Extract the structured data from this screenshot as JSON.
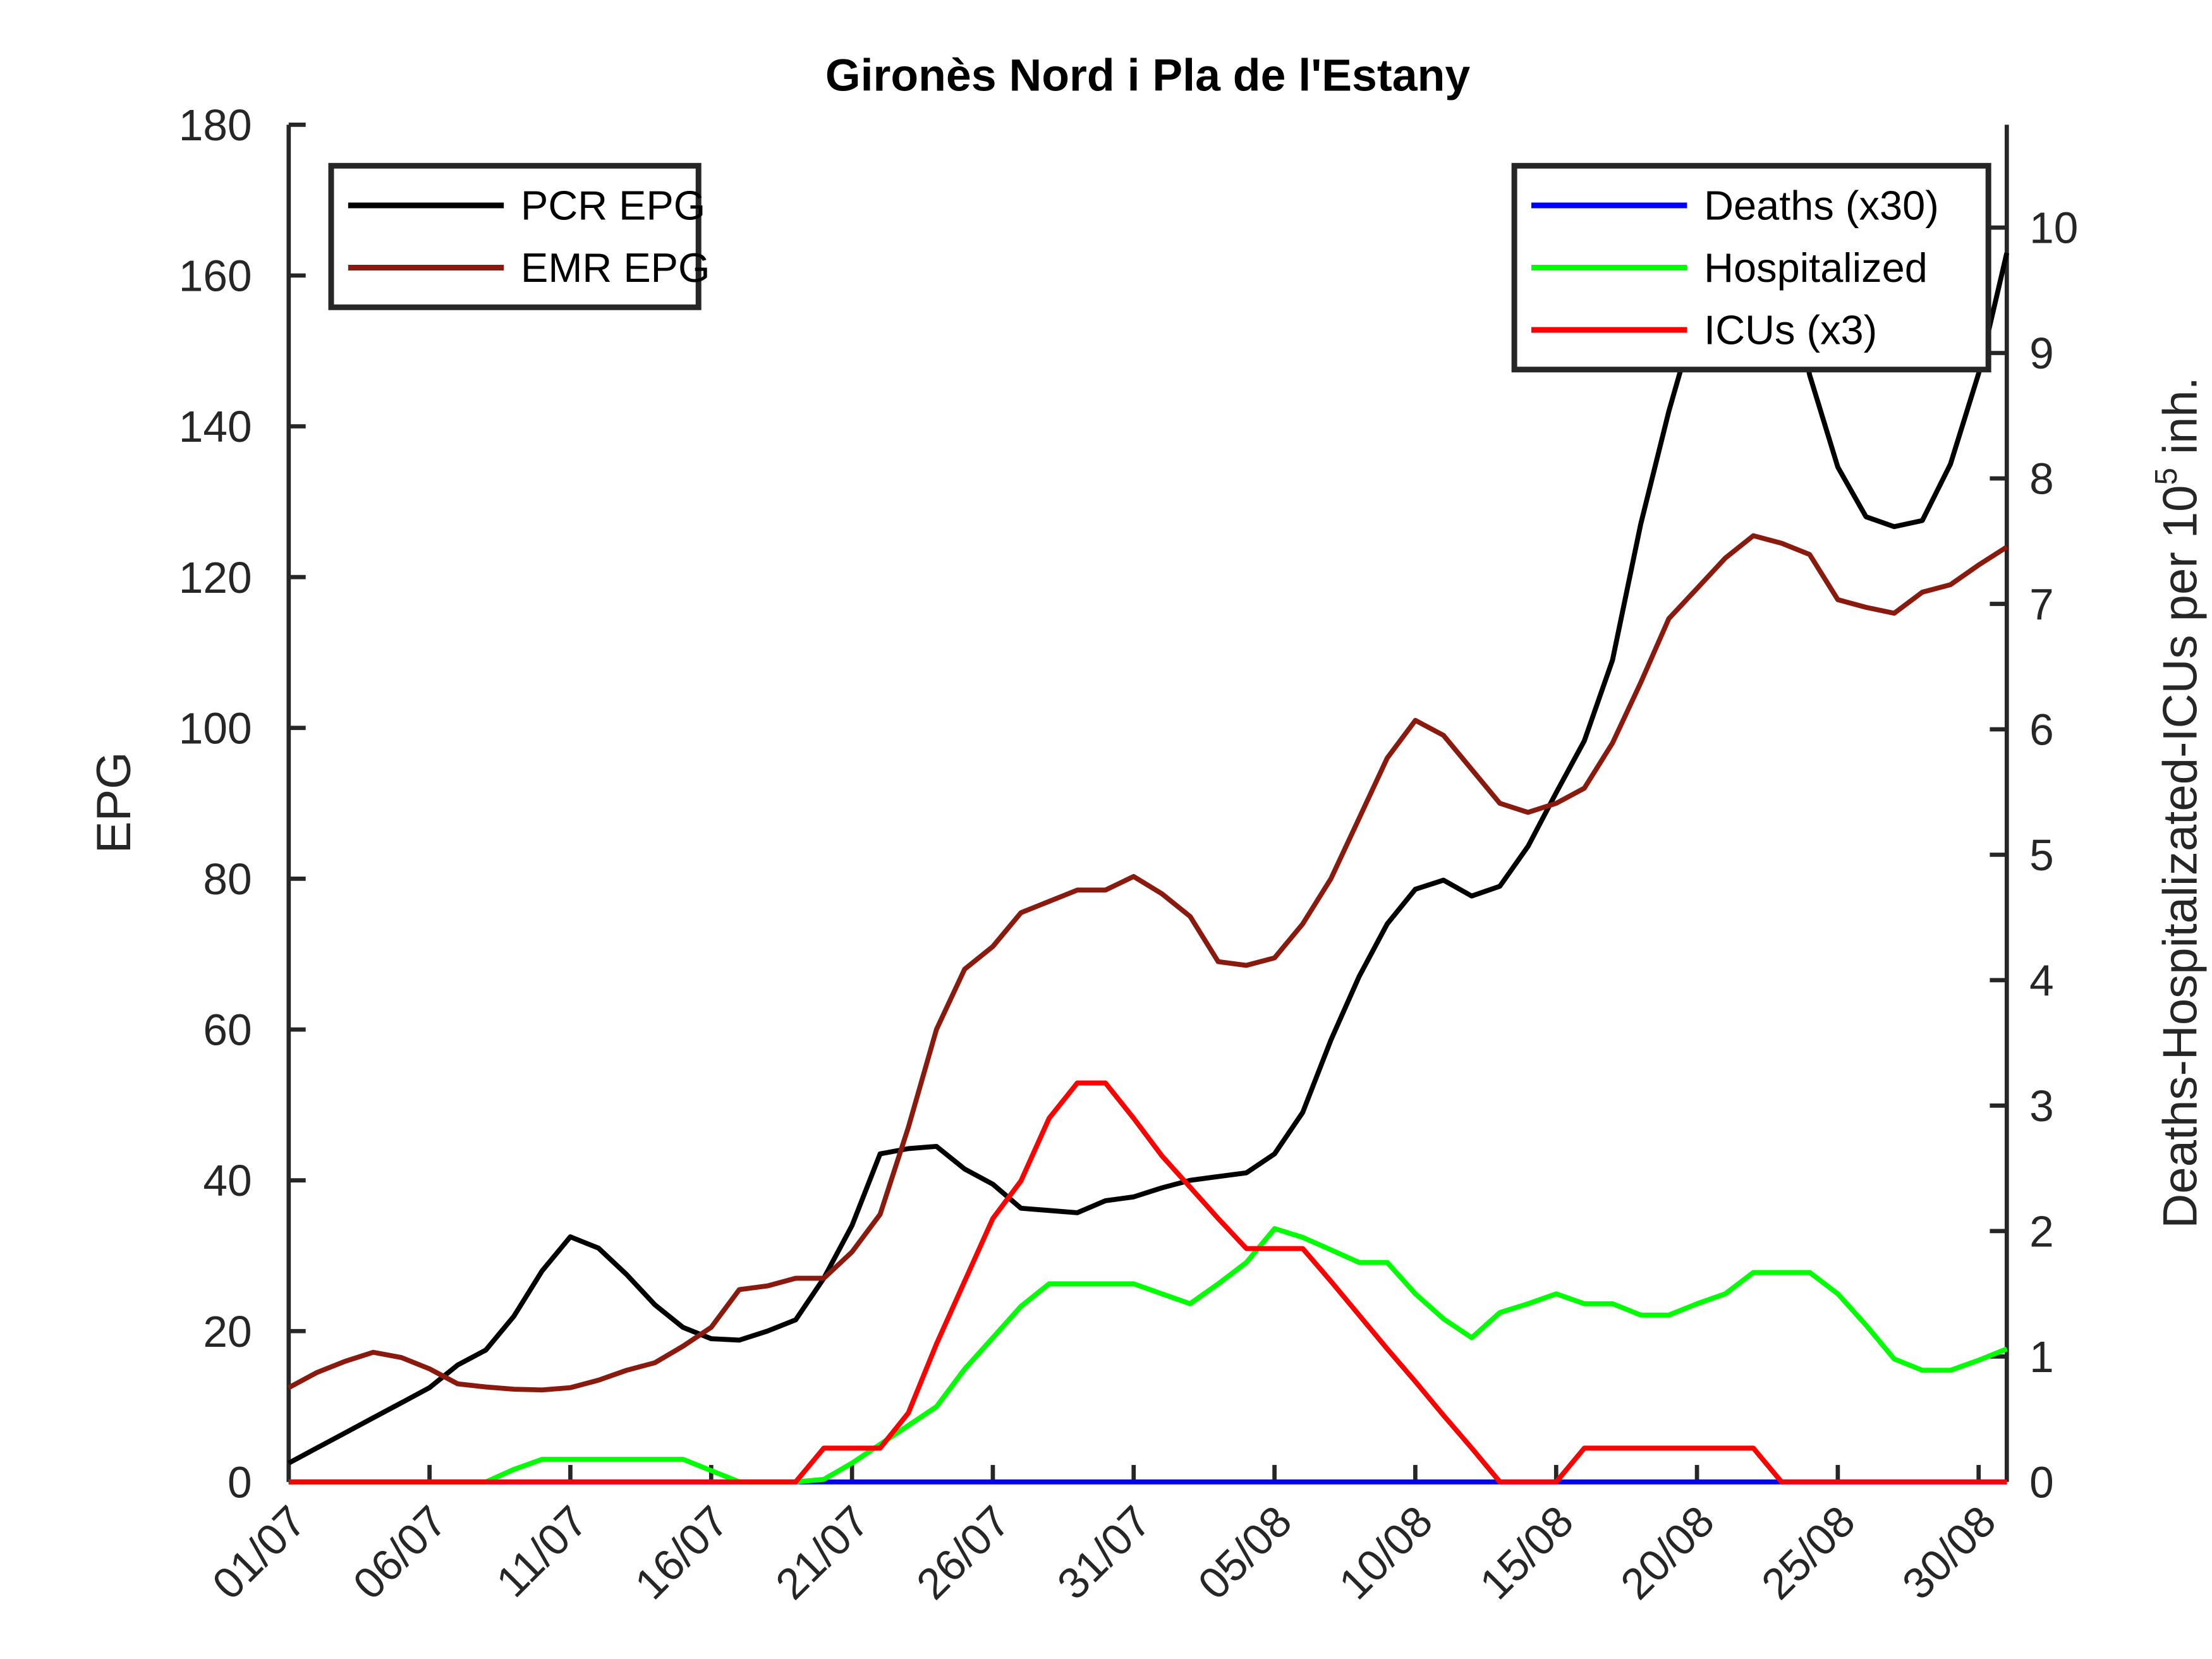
{
  "chart_data": {
    "type": "line",
    "title": "Gironès Nord i Pla de l'Estany",
    "ylabel": "EPG",
    "y2label": [
      "Deaths-Hospitalizated-ICUs per 10",
      "5",
      " inh."
    ],
    "categories": [
      "01/07",
      null,
      null,
      null,
      null,
      "06/07",
      null,
      null,
      null,
      null,
      "11/07",
      null,
      null,
      null,
      null,
      "16/07",
      null,
      null,
      null,
      null,
      "21/07",
      null,
      null,
      null,
      null,
      "26/07",
      null,
      null,
      null,
      null,
      "31/07",
      null,
      null,
      null,
      null,
      "05/08",
      null,
      null,
      null,
      null,
      "10/08",
      null,
      null,
      null,
      null,
      "15/08",
      null,
      null,
      null,
      null,
      "20/08",
      null,
      null,
      null,
      null,
      "25/08",
      null,
      null,
      null,
      null,
      "30/08",
      null
    ],
    "ylim": [
      0,
      180
    ],
    "yticks": [
      0,
      20,
      40,
      60,
      80,
      100,
      120,
      140,
      160,
      180
    ],
    "y2lim": [
      0,
      10.82
    ],
    "y2ticks": [
      0,
      1,
      2,
      3,
      4,
      5,
      6,
      7,
      8,
      9,
      10
    ],
    "legend": {
      "y": "upper left",
      "y2": "upper right"
    },
    "series": [
      {
        "name": "PCR EPG",
        "color": "#000000",
        "axis": "y",
        "values": [
          2.5,
          4.5,
          6.5,
          8.5,
          10.5,
          12.5,
          15.5,
          17.5,
          22,
          28,
          32.5,
          31,
          27.5,
          23.5,
          20.5,
          19,
          18.8,
          20,
          21.5,
          27,
          34,
          43.5,
          44.2,
          44.5,
          41.5,
          39.5,
          36.3,
          36,
          35.7,
          37.3,
          37.8,
          39,
          40,
          40.5,
          41,
          43.5,
          49,
          58.6,
          67,
          74,
          78.6,
          79.8,
          77.7,
          79,
          84.3,
          91.4,
          98.3,
          109,
          127,
          142,
          155,
          165,
          170,
          165,
          146.8,
          134.6,
          128,
          126.7,
          127.5,
          135,
          147,
          163
        ]
      },
      {
        "name": "EMR EPG",
        "color": "#8b1a0e",
        "axis": "y",
        "values": [
          12.5,
          14.5,
          16,
          17.2,
          16.5,
          15,
          13,
          12.6,
          12.3,
          12.2,
          12.5,
          13.5,
          14.8,
          15.8,
          18,
          20.5,
          25.5,
          26,
          27,
          27,
          30.5,
          35.5,
          47,
          60,
          68,
          71,
          75.5,
          77,
          78.5,
          78.5,
          80.3,
          78,
          75,
          69,
          68.5,
          69.5,
          74,
          80,
          88,
          96,
          101,
          99,
          94.5,
          90,
          88.8,
          90,
          92,
          98,
          106,
          114.5,
          118.5,
          122.5,
          125.5,
          124.5,
          123,
          117,
          116,
          115.2,
          118,
          119,
          121.6,
          124
        ]
      },
      {
        "name": "Deaths (x30)",
        "color": "#0000ff",
        "axis": "y2",
        "values": [
          0,
          0,
          0,
          0,
          0,
          0,
          0,
          0,
          0,
          0,
          0,
          0,
          0,
          0,
          0,
          0,
          0,
          0,
          0,
          0,
          0,
          0,
          0,
          0,
          0,
          0,
          0,
          0,
          0,
          0,
          0,
          0,
          0,
          0,
          0,
          0,
          0,
          0,
          0,
          0,
          0,
          0,
          0,
          0,
          0,
          0,
          0,
          0,
          0,
          0,
          0,
          0,
          0,
          0,
          0,
          0,
          0,
          0,
          0,
          0,
          0,
          0
        ]
      },
      {
        "name": "Hospitalized",
        "color": "#00ff00",
        "axis": "y2",
        "values": [
          0,
          0,
          0,
          0,
          0,
          0,
          0,
          0,
          0.1,
          0.18,
          0.18,
          0.18,
          0.18,
          0.18,
          0.18,
          0.09,
          0,
          0,
          0,
          0.02,
          0.15,
          0.3,
          0.45,
          0.6,
          0.9,
          1.15,
          1.4,
          1.58,
          1.58,
          1.58,
          1.58,
          1.5,
          1.42,
          1.58,
          1.75,
          2.02,
          1.95,
          1.85,
          1.75,
          1.75,
          1.5,
          1.3,
          1.15,
          1.35,
          1.42,
          1.5,
          1.42,
          1.42,
          1.33,
          1.33,
          1.42,
          1.5,
          1.67,
          1.67,
          1.67,
          1.5,
          1.25,
          0.98,
          0.89,
          0.89,
          0.97,
          1.06
        ]
      },
      {
        "name": "ICUs (x3)",
        "color": "#ff0000",
        "axis": "y2",
        "values": [
          0,
          0,
          0,
          0,
          0,
          0,
          0,
          0,
          0,
          0,
          0,
          0,
          0,
          0,
          0,
          0,
          0,
          0,
          0,
          0.27,
          0.27,
          0.27,
          0.55,
          1.1,
          1.6,
          2.1,
          2.4,
          2.9,
          3.18,
          3.18,
          2.9,
          2.6,
          2.35,
          2.1,
          1.86,
          1.86,
          1.86,
          1.6,
          1.33,
          1.06,
          0.8,
          0.53,
          0.27,
          0,
          0,
          0,
          0.27,
          0.27,
          0.27,
          0.27,
          0.27,
          0.27,
          0.27,
          0,
          0,
          0,
          0,
          0,
          0,
          0,
          0,
          0
        ]
      }
    ]
  }
}
